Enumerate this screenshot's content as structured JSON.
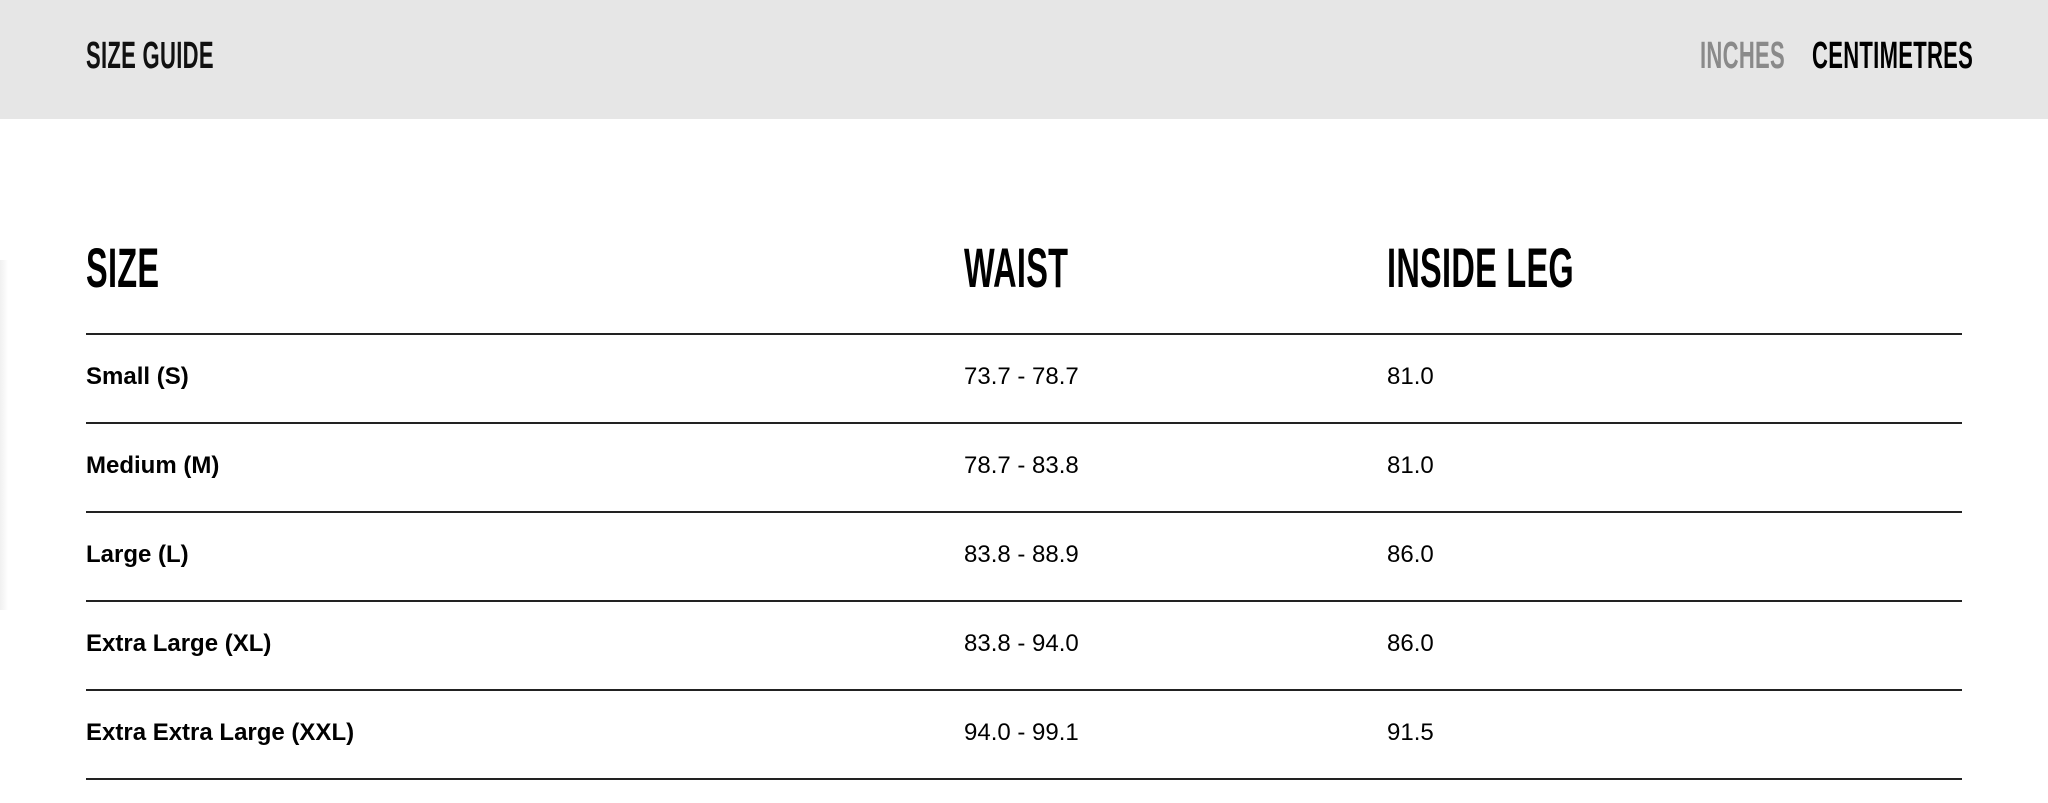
{
  "header": {
    "title": "SIZE GUIDE",
    "units": [
      {
        "label": "INCHES",
        "active": false
      },
      {
        "label": "CENTIMETRES",
        "active": true
      }
    ],
    "active_color": "#000000",
    "inactive_color": "#8a8a8a"
  },
  "table": {
    "columns": [
      "SIZE",
      "WAIST",
      "INSIDE LEG"
    ],
    "rows": [
      {
        "size": "Small (S)",
        "waist": "73.7 - 78.7",
        "inside_leg": "81.0"
      },
      {
        "size": "Medium (M)",
        "waist": "78.7 - 83.8",
        "inside_leg": "81.0"
      },
      {
        "size": "Large (L)",
        "waist": "83.8 - 88.9",
        "inside_leg": "86.0"
      },
      {
        "size": "Extra Large (XL)",
        "waist": "83.8 - 94.0",
        "inside_leg": "86.0"
      },
      {
        "size": "Extra Extra Large (XXL)",
        "waist": "94.0 - 99.1",
        "inside_leg": "91.5"
      }
    ]
  }
}
